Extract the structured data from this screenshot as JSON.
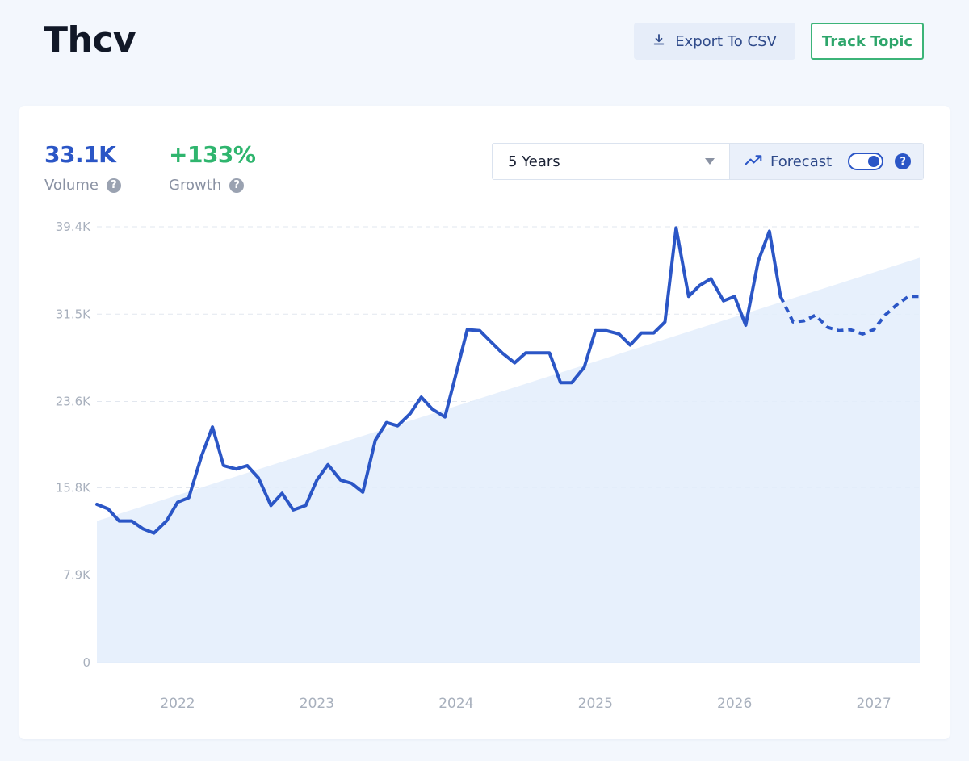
{
  "header": {
    "title": "Thcv",
    "export_label": "Export To CSV",
    "track_label": "Track Topic"
  },
  "metrics": {
    "volume_value": "33.1K",
    "volume_label": "Volume",
    "growth_value": "+133%",
    "growth_label": "Growth",
    "help_glyph": "?"
  },
  "controls": {
    "range_selected": "5 Years",
    "forecast_label": "Forecast",
    "forecast_enabled": true,
    "help_glyph": "?"
  },
  "colors": {
    "accent": "#2b56c6",
    "growth": "#2fb56e",
    "area_fill": "#e3edfb",
    "track_border": "#3cb478"
  },
  "icons": [
    "download-icon",
    "trend-up-icon",
    "chevron-down-icon",
    "help-icon"
  ],
  "chart_data": {
    "type": "line",
    "y_ticks": [
      "0",
      "7.9K",
      "15.8K",
      "23.6K",
      "31.5K",
      "39.4K"
    ],
    "ylim": [
      0,
      39400
    ],
    "x_ticks": [
      "2022",
      "2023",
      "2024",
      "2025",
      "2026",
      "2027"
    ],
    "xlim": [
      2021.42,
      2027.33
    ],
    "grid": true,
    "series": [
      {
        "style": "solid",
        "x": [
          2021.42,
          2021.5,
          2021.58,
          2021.67,
          2021.75,
          2021.83,
          2021.92,
          2022.0,
          2022.08,
          2022.17,
          2022.25,
          2022.33,
          2022.42,
          2022.5,
          2022.58,
          2022.67,
          2022.75,
          2022.83,
          2022.92,
          2023.0,
          2023.08,
          2023.17,
          2023.25,
          2023.33,
          2023.42,
          2023.5,
          2023.58,
          2023.67,
          2023.75,
          2023.83,
          2023.92,
          2024.0,
          2024.08,
          2024.17,
          2024.25,
          2024.33,
          2024.42,
          2024.5,
          2024.58,
          2024.67,
          2024.75,
          2024.83,
          2024.92,
          2025.0,
          2025.08,
          2025.17,
          2025.25,
          2025.33,
          2025.42,
          2025.5,
          2025.58,
          2025.67,
          2025.75,
          2025.83,
          2025.92,
          2026.0,
          2026.08,
          2026.17,
          2026.25,
          2026.33
        ],
        "y": [
          14300,
          13900,
          12800,
          12800,
          12100,
          11700,
          12800,
          14500,
          14900,
          18600,
          21300,
          17800,
          17500,
          17800,
          16700,
          14200,
          15300,
          13800,
          14200,
          16500,
          17900,
          16500,
          16200,
          15400,
          20100,
          21700,
          21400,
          22500,
          24000,
          22900,
          22200,
          26100,
          30100,
          30000,
          29000,
          28000,
          27100,
          28000,
          28000,
          28000,
          25300,
          25300,
          26700,
          30000,
          30000,
          29700,
          28700,
          29800,
          29800,
          30800,
          39300,
          33100,
          34100,
          34700,
          32700,
          33100,
          30500,
          36300,
          39000,
          33100
        ]
      },
      {
        "style": "dashed",
        "x": [
          2026.33,
          2026.42,
          2026.5,
          2026.58,
          2026.67,
          2026.75,
          2026.83,
          2026.92,
          2027.0,
          2027.08,
          2027.17,
          2027.25,
          2027.33
        ],
        "y": [
          33100,
          30800,
          30900,
          31400,
          30300,
          30000,
          30100,
          29700,
          30100,
          31400,
          32400,
          33100,
          33100
        ]
      }
    ],
    "trend": {
      "x": [
        2021.42,
        2027.33
      ],
      "y": [
        12800,
        36600
      ]
    }
  }
}
